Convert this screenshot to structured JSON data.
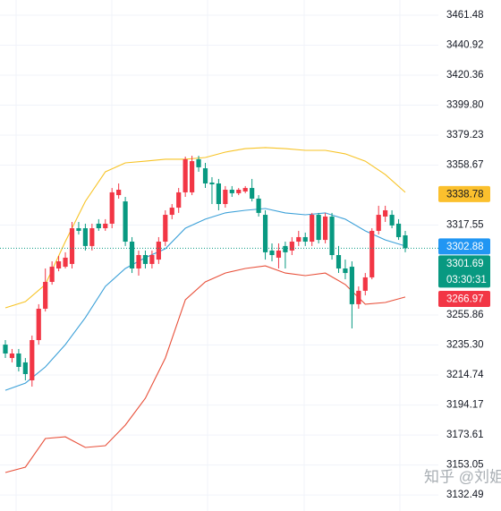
{
  "chart_data": {
    "type": "candlestick",
    "up_color": "#f23645",
    "down_color": "#089981",
    "open": [
      3235.6,
      3226.4,
      3229.5,
      3223.4,
      3211.1,
      3238.7,
      3260.2,
      3278.6,
      3287.8,
      3289.0,
      3290.9,
      3315.4,
      3315.4,
      3303.2,
      3318.5,
      3315.4,
      3318.5,
      3338.1,
      3333.8,
      3306.2,
      3287.8,
      3297.0,
      3290.9,
      3293.9,
      3306.2,
      3324.6,
      3329.5,
      3340.0,
      3340.0,
      3362.7,
      3356.5,
      3346.7,
      3346.1,
      3332.0,
      3341.8,
      3339.4,
      3340.6,
      3343.0,
      3335.7,
      3324.6,
      3300.1,
      3295.2,
      3303.2,
      3300.1,
      3306.2,
      3309.3,
      3306.2,
      3324.6,
      3307.4,
      3323.4,
      3297.0,
      3287.8,
      3289.0,
      3263.3,
      3272.5,
      3281.7,
      3313.6,
      3323.4,
      3324.6,
      3318.5,
      3310.5
    ],
    "high": [
      3238.7,
      3232.6,
      3232.6,
      3226.4,
      3241.8,
      3263.3,
      3287.8,
      3292.7,
      3296.4,
      3298.9,
      3319.7,
      3319.7,
      3318.5,
      3318.5,
      3321.6,
      3321.6,
      3343.0,
      3346.1,
      3336.9,
      3309.3,
      3300.1,
      3300.1,
      3300.1,
      3309.3,
      3327.7,
      3332.0,
      3343.0,
      3364.5,
      3365.1,
      3365.1,
      3360.2,
      3350.4,
      3349.2,
      3344.3,
      3344.3,
      3343.0,
      3344.3,
      3349.2,
      3338.1,
      3327.7,
      3305.0,
      3305.0,
      3306.2,
      3309.3,
      3313.6,
      3312.4,
      3325.9,
      3325.9,
      3325.9,
      3325.9,
      3303.2,
      3293.9,
      3292.7,
      3275.5,
      3284.7,
      3315.4,
      3330.8,
      3330.8,
      3327.7,
      3321.6,
      3313.6
    ],
    "low": [
      3226.4,
      3223.4,
      3217.2,
      3211.1,
      3206.8,
      3235.6,
      3258.3,
      3276.7,
      3285.9,
      3287.8,
      3287.8,
      3311.1,
      3300.1,
      3300.1,
      3313.6,
      3313.6,
      3315.4,
      3335.7,
      3303.2,
      3284.7,
      3282.9,
      3287.8,
      3287.8,
      3290.9,
      3303.2,
      3321.6,
      3325.9,
      3336.9,
      3338.1,
      3354.1,
      3343.0,
      3332.0,
      3327.7,
      3329.5,
      3336.9,
      3338.1,
      3339.4,
      3333.8,
      3323.4,
      3293.9,
      3292.7,
      3287.8,
      3287.8,
      3297.0,
      3303.2,
      3303.2,
      3303.2,
      3305.0,
      3305.0,
      3293.9,
      3284.7,
      3280.4,
      3246.7,
      3260.2,
      3269.4,
      3280.4,
      3311.1,
      3319.7,
      3315.4,
      3307.4,
      3298.9
    ],
    "close": [
      3229.5,
      3229.5,
      3220.3,
      3215.4,
      3238.7,
      3260.2,
      3278.6,
      3289.0,
      3292.7,
      3295.2,
      3315.4,
      3313.6,
      3303.2,
      3315.4,
      3315.4,
      3318.5,
      3340.0,
      3341.8,
      3306.2,
      3287.8,
      3297.0,
      3290.9,
      3297.0,
      3306.2,
      3324.6,
      3329.5,
      3340.0,
      3362.7,
      3361.4,
      3357.2,
      3346.1,
      3345.5,
      3332.0,
      3341.8,
      3339.4,
      3341.8,
      3343.0,
      3335.7,
      3325.9,
      3298.9,
      3297.0,
      3300.1,
      3298.9,
      3306.2,
      3309.3,
      3306.2,
      3324.6,
      3307.4,
      3323.4,
      3297.0,
      3287.8,
      3284.7,
      3263.3,
      3272.5,
      3281.7,
      3313.6,
      3324.6,
      3327.7,
      3317.3,
      3309.3,
      3301.69
    ],
    "band_x": [
      0,
      3,
      6,
      9,
      12,
      15,
      18,
      21,
      24,
      27,
      30,
      33,
      36,
      39,
      42,
      45,
      48,
      51,
      54,
      57,
      60
    ],
    "bands": [
      {
        "color": "#f7c325",
        "last_value": 3338.78,
        "badge_color": "#fbc02d",
        "badge_text": "#131722",
        "values": [
          3260.8,
          3265.1,
          3276.8,
          3306.2,
          3333.8,
          3354.1,
          3360.2,
          3361.4,
          3362.7,
          3362.7,
          3363.9,
          3367.6,
          3370.0,
          3370.7,
          3370.0,
          3368.8,
          3368.8,
          3366.4,
          3361.4,
          3352.2,
          3340.0
        ]
      },
      {
        "color": "#3ba0d8",
        "last_value": 3302.88,
        "badge_color": "#2196f3",
        "badge_text": "#ffffff",
        "values": [
          3204.3,
          3209.2,
          3220.3,
          3235.6,
          3254.1,
          3275.5,
          3287.8,
          3295.2,
          3301.3,
          3315.4,
          3321.6,
          3325.9,
          3327.7,
          3328.9,
          3325.9,
          3324.6,
          3325.9,
          3321.6,
          3313.6,
          3307.4,
          3303.2
        ]
      },
      {
        "color": "#e8503a",
        "last_value": 3266.97,
        "badge_color": "#f23645",
        "badge_text": "#ffffff",
        "values": [
          3147.9,
          3151.6,
          3171.2,
          3172.4,
          3165.1,
          3166.3,
          3180.4,
          3198.8,
          3226.4,
          3266.3,
          3278.6,
          3284.7,
          3287.8,
          3289.6,
          3284.7,
          3282.9,
          3284.7,
          3276.8,
          3263.3,
          3264.5,
          3268.2
        ]
      }
    ],
    "last_close": 3301.69,
    "countdown": "03:30:31",
    "ylim": [
      3121.5,
      3471.9
    ],
    "yticks": [
      3461.48,
      3440.92,
      3420.36,
      {
        "value": 3399.8,
        "label": "3399.80"
      },
      3379.23,
      3358.67,
      3317.55,
      3255.86,
      {
        "value": 3235.3,
        "label": "3235.30"
      },
      3214.74,
      3194.17,
      3173.61,
      3153.05,
      3132.49
    ],
    "grid": true,
    "watermark": "知乎 @刘姐1"
  }
}
